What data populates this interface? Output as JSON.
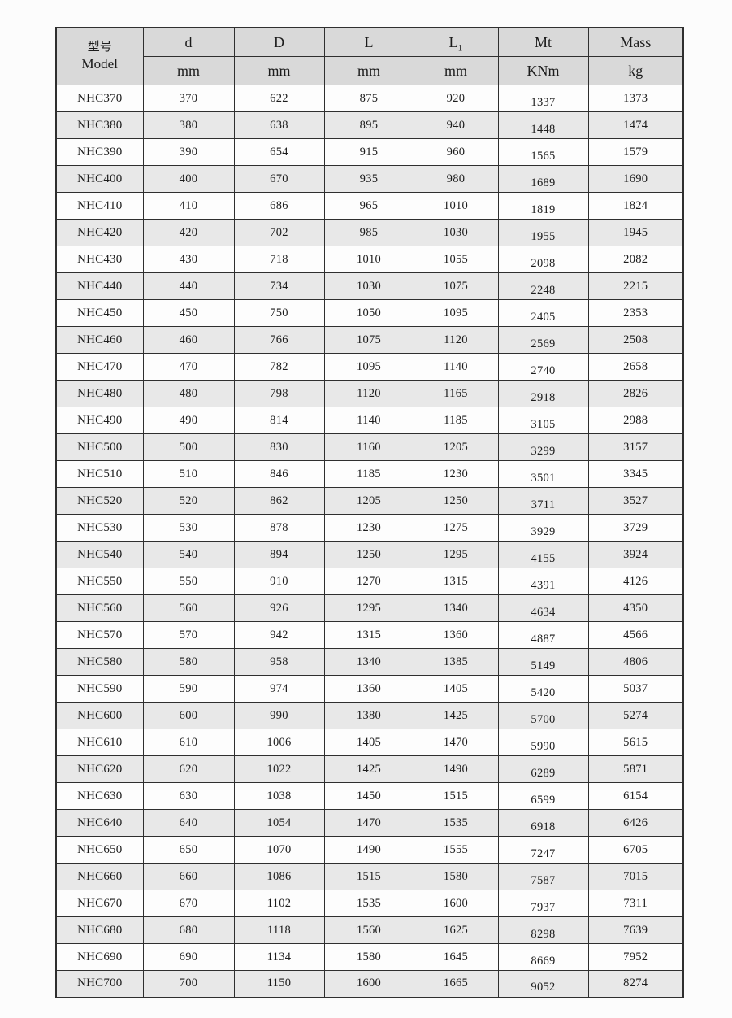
{
  "colors": {
    "page_bg": "#fcfcfc",
    "header_bg": "#d9d9d9",
    "stripe_bg": "#e8e8e8",
    "row_bg": "#fdfdfd",
    "border": "#2f2f2f"
  },
  "table": {
    "model_header": {
      "cn": "型号",
      "en": "Model"
    },
    "columns": [
      {
        "label": "d",
        "sub": "",
        "unit": "mm"
      },
      {
        "label": "D",
        "sub": "",
        "unit": "mm"
      },
      {
        "label": "L",
        "sub": "",
        "unit": "mm"
      },
      {
        "label": "L",
        "sub": "1",
        "unit": "mm"
      },
      {
        "label": "Mt",
        "sub": "",
        "unit": "KNm"
      },
      {
        "label": "Mass",
        "sub": "",
        "unit": "kg"
      }
    ],
    "rows": [
      [
        "NHC370",
        "370",
        "622",
        "875",
        "920",
        "1337",
        "1373"
      ],
      [
        "NHC380",
        "380",
        "638",
        "895",
        "940",
        "1448",
        "1474"
      ],
      [
        "NHC390",
        "390",
        "654",
        "915",
        "960",
        "1565",
        "1579"
      ],
      [
        "NHC400",
        "400",
        "670",
        "935",
        "980",
        "1689",
        "1690"
      ],
      [
        "NHC410",
        "410",
        "686",
        "965",
        "1010",
        "1819",
        "1824"
      ],
      [
        "NHC420",
        "420",
        "702",
        "985",
        "1030",
        "1955",
        "1945"
      ],
      [
        "NHC430",
        "430",
        "718",
        "1010",
        "1055",
        "2098",
        "2082"
      ],
      [
        "NHC440",
        "440",
        "734",
        "1030",
        "1075",
        "2248",
        "2215"
      ],
      [
        "NHC450",
        "450",
        "750",
        "1050",
        "1095",
        "2405",
        "2353"
      ],
      [
        "NHC460",
        "460",
        "766",
        "1075",
        "1120",
        "2569",
        "2508"
      ],
      [
        "NHC470",
        "470",
        "782",
        "1095",
        "1140",
        "2740",
        "2658"
      ],
      [
        "NHC480",
        "480",
        "798",
        "1120",
        "1165",
        "2918",
        "2826"
      ],
      [
        "NHC490",
        "490",
        "814",
        "1140",
        "1185",
        "3105",
        "2988"
      ],
      [
        "NHC500",
        "500",
        "830",
        "1160",
        "1205",
        "3299",
        "3157"
      ],
      [
        "NHC510",
        "510",
        "846",
        "1185",
        "1230",
        "3501",
        "3345"
      ],
      [
        "NHC520",
        "520",
        "862",
        "1205",
        "1250",
        "3711",
        "3527"
      ],
      [
        "NHC530",
        "530",
        "878",
        "1230",
        "1275",
        "3929",
        "3729"
      ],
      [
        "NHC540",
        "540",
        "894",
        "1250",
        "1295",
        "4155",
        "3924"
      ],
      [
        "NHC550",
        "550",
        "910",
        "1270",
        "1315",
        "4391",
        "4126"
      ],
      [
        "NHC560",
        "560",
        "926",
        "1295",
        "1340",
        "4634",
        "4350"
      ],
      [
        "NHC570",
        "570",
        "942",
        "1315",
        "1360",
        "4887",
        "4566"
      ],
      [
        "NHC580",
        "580",
        "958",
        "1340",
        "1385",
        "5149",
        "4806"
      ],
      [
        "NHC590",
        "590",
        "974",
        "1360",
        "1405",
        "5420",
        "5037"
      ],
      [
        "NHC600",
        "600",
        "990",
        "1380",
        "1425",
        "5700",
        "5274"
      ],
      [
        "NHC610",
        "610",
        "1006",
        "1405",
        "1470",
        "5990",
        "5615"
      ],
      [
        "NHC620",
        "620",
        "1022",
        "1425",
        "1490",
        "6289",
        "5871"
      ],
      [
        "NHC630",
        "630",
        "1038",
        "1450",
        "1515",
        "6599",
        "6154"
      ],
      [
        "NHC640",
        "640",
        "1054",
        "1470",
        "1535",
        "6918",
        "6426"
      ],
      [
        "NHC650",
        "650",
        "1070",
        "1490",
        "1555",
        "7247",
        "6705"
      ],
      [
        "NHC660",
        "660",
        "1086",
        "1515",
        "1580",
        "7587",
        "7015"
      ],
      [
        "NHC670",
        "670",
        "1102",
        "1535",
        "1600",
        "7937",
        "7311"
      ],
      [
        "NHC680",
        "680",
        "1118",
        "1560",
        "1625",
        "8298",
        "7639"
      ],
      [
        "NHC690",
        "690",
        "1134",
        "1580",
        "1645",
        "8669",
        "7952"
      ],
      [
        "NHC700",
        "700",
        "1150",
        "1600",
        "1665",
        "9052",
        "8274"
      ]
    ]
  }
}
